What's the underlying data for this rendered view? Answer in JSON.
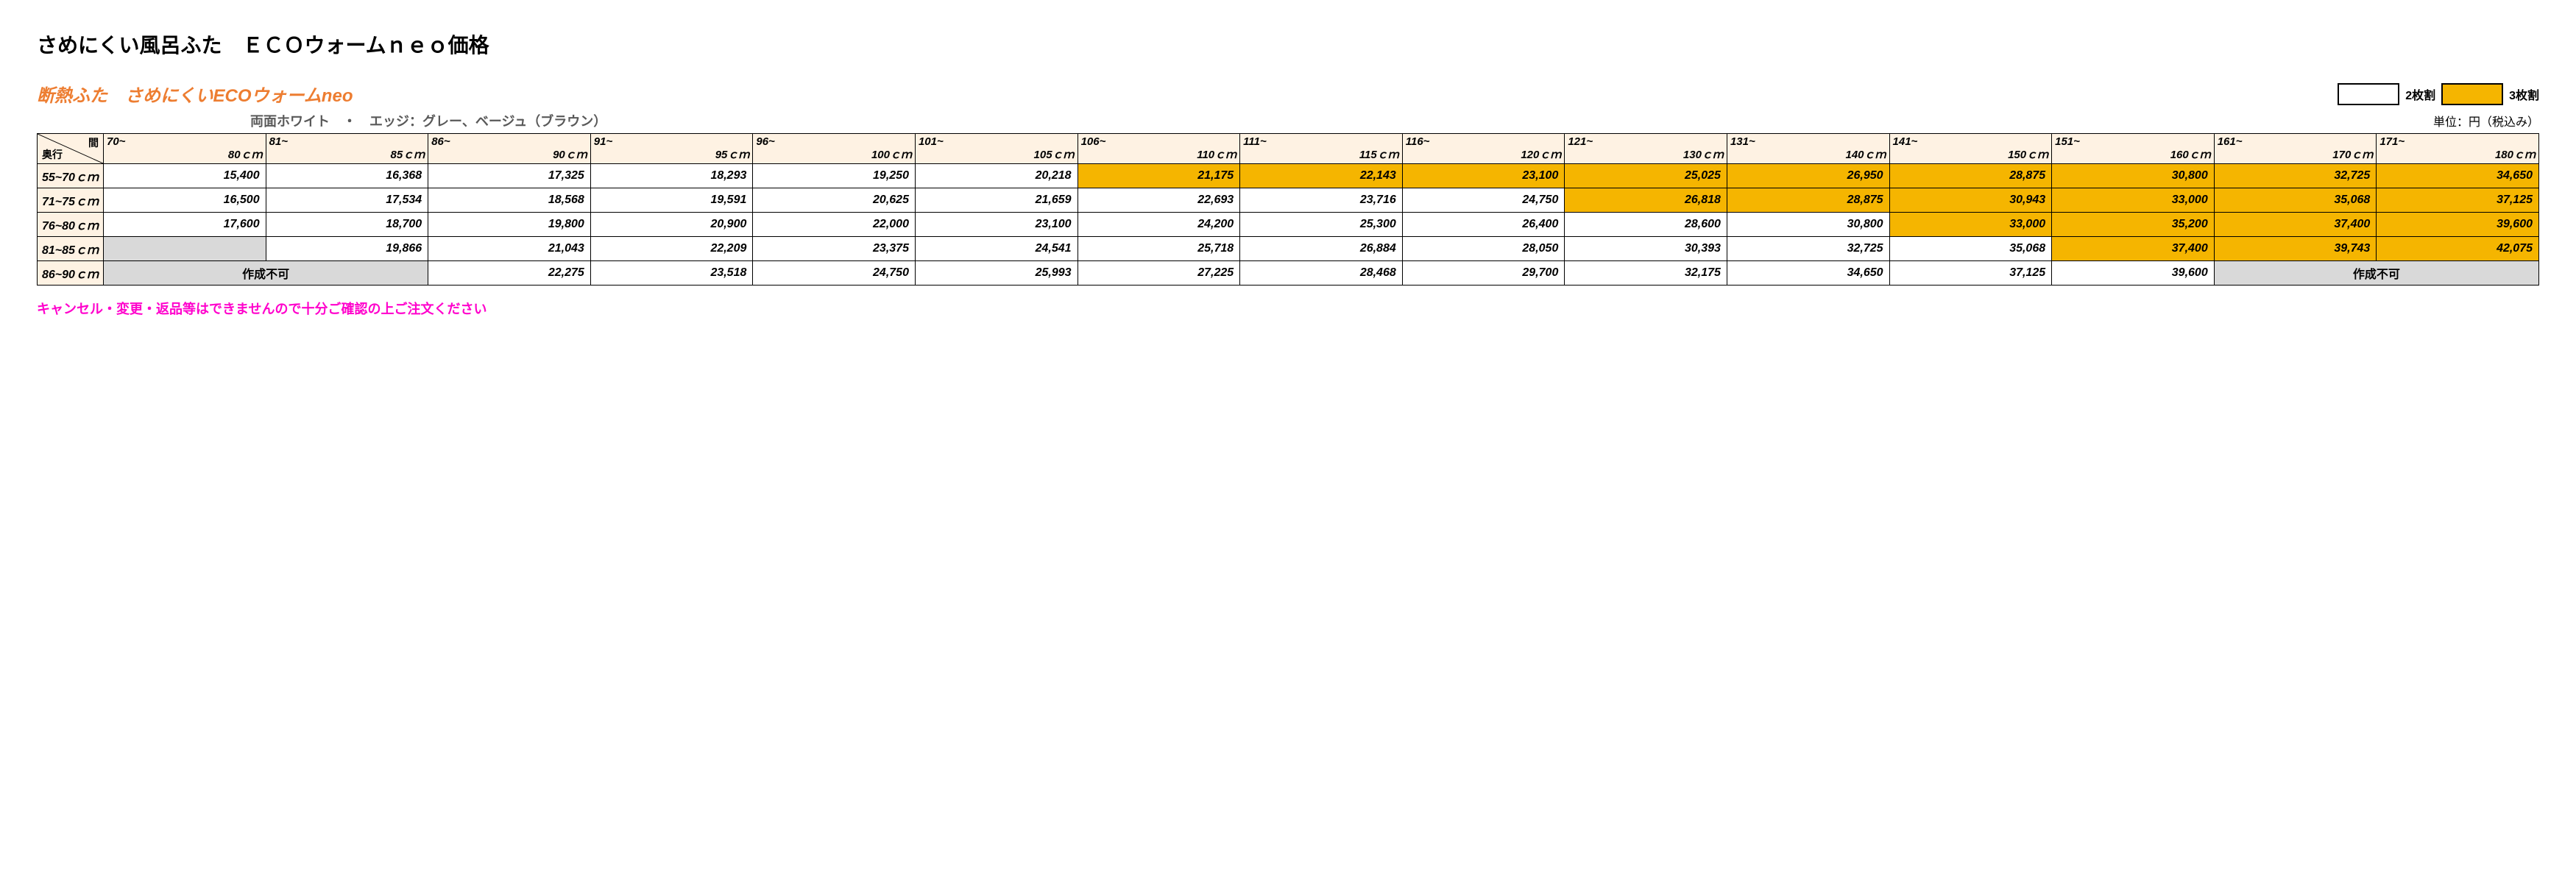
{
  "title": "さめにくい風呂ふた　ＥＣＯウォームｎｅｏ価格",
  "subtitle": "断熱ふた　さめにくいECOウォームneo",
  "colors": {
    "accent_orange": "#ed7d31",
    "header_bg": "#fef2e3",
    "highlight_yellow": "#f5b500",
    "na_bg": "#d9d9d9",
    "desc_gray": "#595959",
    "note_pink": "#ff00cc",
    "border": "#000000"
  },
  "legend": {
    "two_panel": "2枚割",
    "three_panel": "3枚割"
  },
  "description": "両面ホワイト　・　エッジ：グレー、ベージュ（ブラウン）",
  "unit_label": "単位：円（税込み）",
  "corner": {
    "top": "間",
    "bottom": "奥行"
  },
  "columns": [
    {
      "range": "70~",
      "unit": "80ｃｍ"
    },
    {
      "range": "81~",
      "unit": "85ｃｍ"
    },
    {
      "range": "86~",
      "unit": "90ｃｍ"
    },
    {
      "range": "91~",
      "unit": "95ｃｍ"
    },
    {
      "range": "96~",
      "unit": "100ｃｍ"
    },
    {
      "range": "101~",
      "unit": "105ｃｍ"
    },
    {
      "range": "106~",
      "unit": "110ｃｍ"
    },
    {
      "range": "111~",
      "unit": "115ｃｍ"
    },
    {
      "range": "116~",
      "unit": "120ｃｍ"
    },
    {
      "range": "121~",
      "unit": "130ｃｍ"
    },
    {
      "range": "131~",
      "unit": "140ｃｍ"
    },
    {
      "range": "141~",
      "unit": "150ｃｍ"
    },
    {
      "range": "151~",
      "unit": "160ｃｍ"
    },
    {
      "range": "161~",
      "unit": "170ｃｍ"
    },
    {
      "range": "171~",
      "unit": "180ｃｍ"
    }
  ],
  "rows": [
    {
      "label": "55~70ｃｍ",
      "cells": [
        {
          "v": "15,400",
          "y": false
        },
        {
          "v": "16,368",
          "y": false
        },
        {
          "v": "17,325",
          "y": false
        },
        {
          "v": "18,293",
          "y": false
        },
        {
          "v": "19,250",
          "y": false
        },
        {
          "v": "20,218",
          "y": false
        },
        {
          "v": "21,175",
          "y": true
        },
        {
          "v": "22,143",
          "y": true
        },
        {
          "v": "23,100",
          "y": true
        },
        {
          "v": "25,025",
          "y": true
        },
        {
          "v": "26,950",
          "y": true
        },
        {
          "v": "28,875",
          "y": true
        },
        {
          "v": "30,800",
          "y": true
        },
        {
          "v": "32,725",
          "y": true
        },
        {
          "v": "34,650",
          "y": true
        }
      ]
    },
    {
      "label": "71~75ｃｍ",
      "cells": [
        {
          "v": "16,500",
          "y": false
        },
        {
          "v": "17,534",
          "y": false
        },
        {
          "v": "18,568",
          "y": false
        },
        {
          "v": "19,591",
          "y": false
        },
        {
          "v": "20,625",
          "y": false
        },
        {
          "v": "21,659",
          "y": false
        },
        {
          "v": "22,693",
          "y": false
        },
        {
          "v": "23,716",
          "y": false
        },
        {
          "v": "24,750",
          "y": false
        },
        {
          "v": "26,818",
          "y": true
        },
        {
          "v": "28,875",
          "y": true
        },
        {
          "v": "30,943",
          "y": true
        },
        {
          "v": "33,000",
          "y": true
        },
        {
          "v": "35,068",
          "y": true
        },
        {
          "v": "37,125",
          "y": true
        }
      ]
    },
    {
      "label": "76~80ｃｍ",
      "cells": [
        {
          "v": "17,600",
          "y": false
        },
        {
          "v": "18,700",
          "y": false
        },
        {
          "v": "19,800",
          "y": false
        },
        {
          "v": "20,900",
          "y": false
        },
        {
          "v": "22,000",
          "y": false
        },
        {
          "v": "23,100",
          "y": false
        },
        {
          "v": "24,200",
          "y": false
        },
        {
          "v": "25,300",
          "y": false
        },
        {
          "v": "26,400",
          "y": false
        },
        {
          "v": "28,600",
          "y": false
        },
        {
          "v": "30,800",
          "y": false
        },
        {
          "v": "33,000",
          "y": true
        },
        {
          "v": "35,200",
          "y": true
        },
        {
          "v": "37,400",
          "y": true
        },
        {
          "v": "39,600",
          "y": true
        }
      ]
    },
    {
      "label": "81~85ｃｍ",
      "cells": [
        {
          "na": true,
          "text": "",
          "span": 1
        },
        {
          "v": "19,866",
          "y": false
        },
        {
          "v": "21,043",
          "y": false
        },
        {
          "v": "22,209",
          "y": false
        },
        {
          "v": "23,375",
          "y": false
        },
        {
          "v": "24,541",
          "y": false
        },
        {
          "v": "25,718",
          "y": false
        },
        {
          "v": "26,884",
          "y": false
        },
        {
          "v": "28,050",
          "y": false
        },
        {
          "v": "30,393",
          "y": false
        },
        {
          "v": "32,725",
          "y": false
        },
        {
          "v": "35,068",
          "y": false
        },
        {
          "v": "37,400",
          "y": true
        },
        {
          "v": "39,743",
          "y": true
        },
        {
          "v": "42,075",
          "y": true
        }
      ]
    },
    {
      "label": "86~90ｃｍ",
      "cells": [
        {
          "na": true,
          "text": "作成不可",
          "span": 2
        },
        {
          "v": "22,275",
          "y": false
        },
        {
          "v": "23,518",
          "y": false
        },
        {
          "v": "24,750",
          "y": false
        },
        {
          "v": "25,993",
          "y": false
        },
        {
          "v": "27,225",
          "y": false
        },
        {
          "v": "28,468",
          "y": false
        },
        {
          "v": "29,700",
          "y": false
        },
        {
          "v": "32,175",
          "y": false
        },
        {
          "v": "34,650",
          "y": false
        },
        {
          "v": "37,125",
          "y": false
        },
        {
          "v": "39,600",
          "y": false
        },
        {
          "na": true,
          "text": "作成不可",
          "span": 2
        }
      ]
    }
  ],
  "footer_note": "キャンセル・変更・返品等はできませんので十分ご確認の上ご注文ください"
}
